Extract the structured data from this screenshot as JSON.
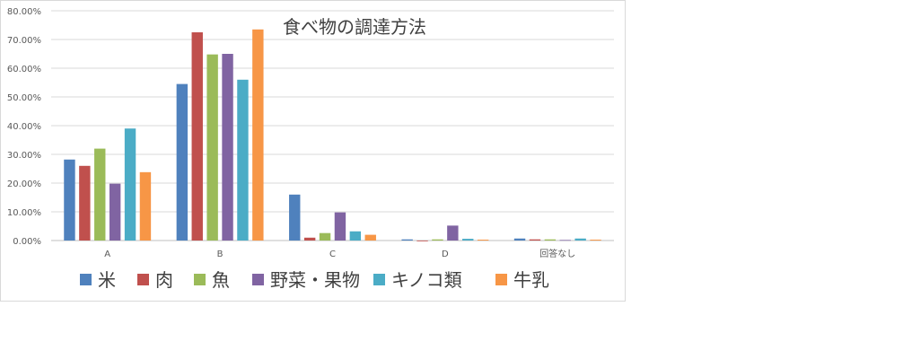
{
  "chart_data": {
    "type": "bar",
    "title": "食べ物の調達方法",
    "xlabel": "",
    "ylabel": "",
    "categories": [
      "A",
      "B",
      "C",
      "D",
      "回答なし"
    ],
    "ylim": [
      0,
      80
    ],
    "yticks": [
      "0.00%",
      "10.00%",
      "20.00%",
      "30.00%",
      "40.00%",
      "50.00%",
      "60.00%",
      "70.00%",
      "80.00%"
    ],
    "grid": true,
    "legend_position": "bottom",
    "series": [
      {
        "name": "米",
        "color": "#4f81bd",
        "values": [
          28.2,
          54.5,
          16.0,
          0.4,
          0.7
        ]
      },
      {
        "name": "肉",
        "color": "#c0504d",
        "values": [
          26.0,
          72.5,
          1.0,
          0.0,
          0.4
        ]
      },
      {
        "name": "魚",
        "color": "#9bbb59",
        "values": [
          32.0,
          64.8,
          2.6,
          0.4,
          0.4
        ]
      },
      {
        "name": "野菜・果物",
        "color": "#8064a2",
        "values": [
          19.8,
          65.0,
          9.8,
          5.2,
          0.2
        ]
      },
      {
        "name": "キノコ類",
        "color": "#4bacc6",
        "values": [
          39.0,
          56.0,
          3.2,
          0.6,
          0.7
        ]
      },
      {
        "name": "牛乳",
        "color": "#f79646",
        "values": [
          23.8,
          73.5,
          2.0,
          0.3,
          0.3
        ]
      }
    ]
  }
}
